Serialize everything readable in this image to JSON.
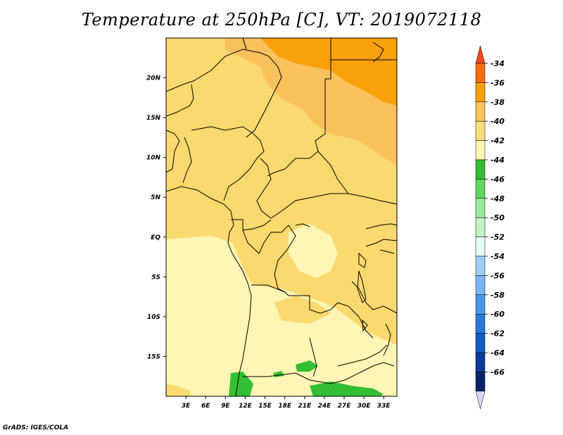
{
  "title": "Temperature at 250hPa [C], VT: 2019072118",
  "credit": "GrADS: IGES/COLA",
  "map": {
    "lon_labels": [
      "3E",
      "6E",
      "9E",
      "12E",
      "15E",
      "18E",
      "21E",
      "24E",
      "27E",
      "30E",
      "33E"
    ],
    "lon_values": [
      3,
      6,
      9,
      12,
      15,
      18,
      21,
      24,
      27,
      30,
      33
    ],
    "lat_labels": [
      "20N",
      "15N",
      "10N",
      "5N",
      "EQ",
      "5S",
      "10S",
      "15S"
    ],
    "lat_values": [
      20,
      15,
      10,
      5,
      0,
      -5,
      -10,
      -15
    ],
    "lon_range": [
      0,
      35
    ],
    "lat_range": [
      -20,
      25
    ]
  },
  "colorbar": {
    "labels": [
      "-34",
      "-36",
      "-38",
      "-40",
      "-42",
      "-44",
      "-46",
      "-48",
      "-50",
      "-52",
      "-54",
      "-56",
      "-58",
      "-60",
      "-62",
      "-64",
      "-66"
    ],
    "colors": [
      "#f0491a",
      "#fa6e0a",
      "#faa00a",
      "#fac15d",
      "#fadd7a",
      "#fff5b4",
      "#34be34",
      "#5fd65f",
      "#9be79b",
      "#c2f2c2",
      "#e6ffff",
      "#a0cdf5",
      "#7bb4f0",
      "#4b96e6",
      "#2878dc",
      "#145ac8",
      "#0a3a9b",
      "#082468",
      "#d6d6f8"
    ]
  },
  "colors": {
    "warm_yellow": "#fad96e",
    "pale_yellow": "#fff5b4",
    "orange": "#faa00a",
    "light_orange": "#fac15d",
    "green": "#34be34",
    "light_green": "#5fd65f"
  }
}
